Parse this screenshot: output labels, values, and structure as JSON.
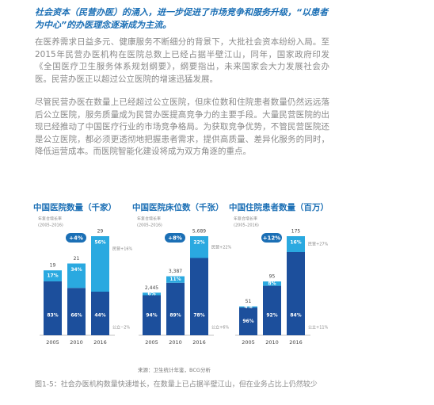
{
  "heading": "社会资本（民营办医）的涌入，进一步促进了市场竞争和服务升级，“以患者为中心”的办医理念逐渐成为主流。",
  "paragraphs": [
    "在医养需求日益多元、健康服务不断细分的背景下，大批社会资本纷纷入局。至2015年民营办医机构在医院总数上已经占据半壁江山，同年，国家政府印发《全国医疗卫生服务体系规划纲要》，纲要指出，未来国家会大力发展社会办医。民营办医正以超过公立医院的增速迅猛发展。",
    "尽管民营办医在数量上已经超过公立医院，但床位数和住院患者数量仍然远远落后公立医院，服务质量成为民营办医提高竞争力的主要手段。大量民营医院的出现已经推动了中国医疗行业的市场竞争格局。为获取竞争优势，不管民营医院还是公立医院，都必须更透彻地把握患者需求，提供高质量、差异化服务的同时，降低运营成本。而医院智能化建设将成为双方角逐的重点。"
  ],
  "chart_data": [
    {
      "type": "bar",
      "title": "中国医院数量（千家）",
      "subtitle": [
        "年复合增长率",
        "(2005–2016)"
      ],
      "cagr_label": "+4%",
      "categories": [
        "2005",
        "2010",
        "2016"
      ],
      "totals": [
        19,
        21,
        29
      ],
      "series": [
        {
          "color": "#1c4f9c",
          "values": [
            83,
            66,
            44
          ],
          "value_labels": [
            "83%",
            "66%",
            "44%"
          ],
          "cagr_label": "公立−2%"
        },
        {
          "color": "#2aa9e0",
          "values": [
            17,
            34,
            56
          ],
          "value_labels": [
            "17%",
            "34%",
            "56%"
          ],
          "cagr_label": "民营+16%"
        }
      ]
    },
    {
      "type": "bar",
      "title": "中国医院床位数（千张）",
      "subtitle": [
        "年复合增长率",
        "(2005–2016)"
      ],
      "cagr_label": "+8%",
      "categories": [
        "2005",
        "2010",
        "2016"
      ],
      "totals": [
        {
          "value": 2445,
          "label": "2,445"
        },
        {
          "value": 3387,
          "label": "3,387"
        },
        {
          "value": 5689,
          "label": "5,689"
        }
      ],
      "series": [
        {
          "color": "#1c4f9c",
          "values": [
            94,
            89,
            78
          ],
          "value_labels": [
            "94%",
            "89%",
            "78%"
          ],
          "cagr_label": "公立+6%"
        },
        {
          "color": "#2aa9e0",
          "values": [
            6,
            11,
            22
          ],
          "value_labels": [
            "6%",
            "11%",
            "22%"
          ],
          "cagr_label": "民营+22%"
        }
      ]
    },
    {
      "type": "bar",
      "title": "中国住院患者数量（百万）",
      "subtitle": [
        "年复合增长率",
        "(2005–2016)"
      ],
      "cagr_label": "+12%",
      "categories": [
        "2005",
        "2010",
        "2016"
      ],
      "totals": [
        51,
        95,
        175
      ],
      "series": [
        {
          "color": "#1c4f9c",
          "values": [
            96,
            92,
            84
          ],
          "value_labels": [
            "96%",
            "92%",
            "84%"
          ],
          "cagr_label": "公立+11%"
        },
        {
          "color": "#2aa9e0",
          "values": [
            4,
            8,
            16
          ],
          "value_labels": [
            "4%",
            "8%",
            "16%"
          ],
          "cagr_label": "民营+27%"
        }
      ]
    }
  ],
  "source": "来源：卫生统计年鉴，BCG分析",
  "caption": "图1-5：社会办医机构数量快速增长，在数量上已占据半壁江山，但在业务占比上仍然较少"
}
